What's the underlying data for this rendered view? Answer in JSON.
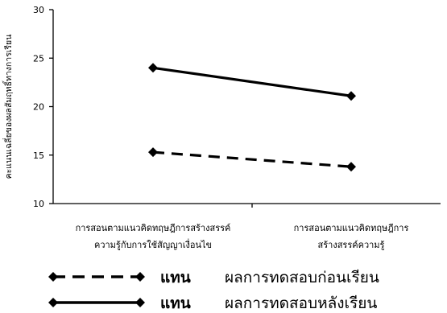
{
  "chart_data": {
    "type": "line",
    "categories": [
      [
        "การสอนตามแนวคิดทฤษฎีการสร้างสรรค์",
        "ความรู้กับการใช้สัญญาเงื่อนไข"
      ],
      [
        "การสอนตามแนวคิดทฤษฎีการ",
        "สร้างสรรค์ความรู้"
      ]
    ],
    "ylabel": "คะแนนเฉลี่ยของผลสัมฤทธิ์ทางการเรียน",
    "ylim": [
      10,
      30
    ],
    "yticks": [
      10,
      15,
      20,
      25,
      30
    ],
    "grid": false,
    "legend_position": "bottom",
    "series": [
      {
        "name": "ผลการทดสอบก่อนเรียน",
        "style": "dashed",
        "values": [
          15.3,
          13.8
        ]
      },
      {
        "name": "ผลการทดสอบหลังเรียน",
        "style": "solid",
        "values": [
          24.0,
          21.1
        ]
      }
    ],
    "legend_word": "แทน",
    "marker": "diamond",
    "line_color": "#000000"
  }
}
